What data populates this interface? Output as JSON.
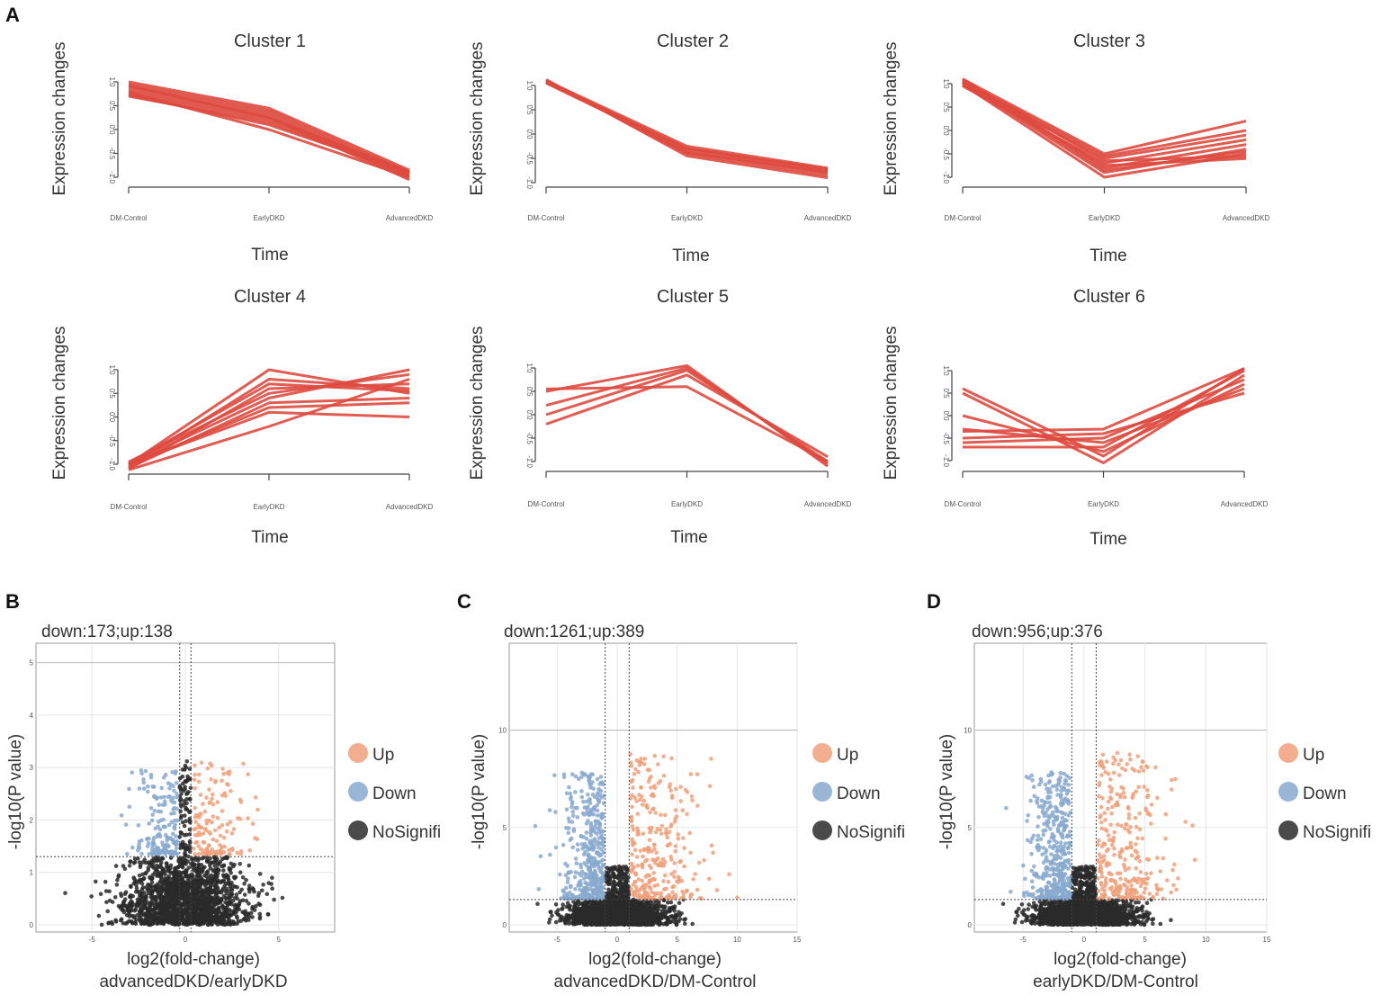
{
  "figure": {
    "panel_letters": [
      "A",
      "B",
      "C",
      "D"
    ]
  },
  "chart_data": [
    {
      "type": "line",
      "panel": "A",
      "title": "Cluster 1",
      "xlabel": "Time",
      "ylabel": "Expression changes",
      "categories": [
        "DM-Control",
        "EarlyDKD",
        "AdvancedDKD"
      ],
      "ylim": [
        -1.0,
        1.0
      ],
      "yticks": [
        -1.0,
        -0.5,
        0.0,
        0.5,
        1.0
      ],
      "series_color": "#de4a3f",
      "series": [
        [
          1.0,
          0.45,
          -0.85
        ],
        [
          0.95,
          0.4,
          -0.9
        ],
        [
          0.9,
          0.35,
          -0.95
        ],
        [
          0.85,
          0.3,
          -1.0
        ],
        [
          0.8,
          0.25,
          -1.05
        ],
        [
          0.75,
          0.2,
          -0.9
        ],
        [
          0.7,
          0.15,
          -0.95
        ],
        [
          0.78,
          0.0,
          -1.0
        ],
        [
          0.72,
          0.1,
          -0.9
        ],
        [
          0.92,
          0.25,
          -0.88
        ]
      ]
    },
    {
      "type": "line",
      "panel": "A",
      "title": "Cluster 2",
      "xlabel": "Time",
      "ylabel": "Expression changes",
      "categories": [
        "DM-Control",
        "EarlyDKD",
        "AdvancedDKD"
      ],
      "ylim": [
        -1.0,
        1.0
      ],
      "yticks": [
        -1.0,
        -0.5,
        0.0,
        0.5,
        1.0
      ],
      "series_color": "#de4a3f",
      "series": [
        [
          1.1,
          -0.25,
          -0.7
        ],
        [
          1.08,
          -0.3,
          -0.75
        ],
        [
          1.05,
          -0.35,
          -0.8
        ],
        [
          1.1,
          -0.4,
          -0.85
        ],
        [
          1.12,
          -0.45,
          -0.9
        ],
        [
          1.06,
          -0.3,
          -0.72
        ],
        [
          1.09,
          -0.38,
          -0.78
        ]
      ]
    },
    {
      "type": "line",
      "panel": "A",
      "title": "Cluster 3",
      "xlabel": "Time",
      "ylabel": "Expression changes",
      "categories": [
        "DM-Control",
        "EarlyDKD",
        "AdvancedDKD"
      ],
      "ylim": [
        -1.0,
        1.0
      ],
      "yticks": [
        -1.0,
        -0.5,
        0.0,
        0.5,
        1.0
      ],
      "series_color": "#de4a3f",
      "series": [
        [
          1.1,
          -0.5,
          0.2
        ],
        [
          1.05,
          -0.55,
          0.0
        ],
        [
          1.0,
          -0.6,
          -0.1
        ],
        [
          0.95,
          -0.7,
          -0.2
        ],
        [
          1.1,
          -0.8,
          -0.3
        ],
        [
          1.02,
          -0.9,
          -0.4
        ],
        [
          0.98,
          -1.0,
          -0.5
        ],
        [
          1.08,
          -0.65,
          -0.55
        ],
        [
          1.04,
          -0.75,
          -0.6
        ],
        [
          1.06,
          -0.85,
          -0.45
        ]
      ]
    },
    {
      "type": "line",
      "panel": "A",
      "title": "Cluster 4",
      "xlabel": "Time",
      "ylabel": "Expression changes",
      "categories": [
        "DM-Control",
        "EarlyDKD",
        "AdvancedDKD"
      ],
      "ylim": [
        -1.0,
        1.0
      ],
      "yticks": [
        -1.0,
        -0.5,
        0.0,
        0.5,
        1.0
      ],
      "series_color": "#de4a3f",
      "series": [
        [
          -1.0,
          1.0,
          0.5
        ],
        [
          -1.05,
          0.8,
          0.6
        ],
        [
          -1.1,
          0.6,
          0.7
        ],
        [
          -0.95,
          0.5,
          0.9
        ],
        [
          -1.0,
          0.4,
          1.0
        ],
        [
          -1.08,
          0.3,
          0.4
        ],
        [
          -1.02,
          0.2,
          0.3
        ],
        [
          -1.0,
          0.1,
          0.0
        ],
        [
          -1.12,
          -0.2,
          0.8
        ],
        [
          -0.98,
          0.7,
          0.55
        ]
      ]
    },
    {
      "type": "line",
      "panel": "A",
      "title": "Cluster 5",
      "xlabel": "Time",
      "ylabel": "Expression changes",
      "categories": [
        "DM-Control",
        "EarlyDKD",
        "AdvancedDKD"
      ],
      "ylim": [
        -1.0,
        1.0
      ],
      "yticks": [
        -1.0,
        -0.5,
        0.0,
        0.5,
        1.0
      ],
      "series_color": "#de4a3f",
      "series": [
        [
          0.55,
          0.6,
          -1.0
        ],
        [
          0.5,
          1.05,
          -1.1
        ],
        [
          0.2,
          1.0,
          -1.05
        ],
        [
          0.0,
          0.95,
          -1.0
        ],
        [
          -0.2,
          0.85,
          -0.9
        ]
      ]
    },
    {
      "type": "line",
      "panel": "A",
      "title": "Cluster 6",
      "xlabel": "Time",
      "ylabel": "Expression changes",
      "categories": [
        "DM-Control",
        "EarlyDKD",
        "AdvancedDKD"
      ],
      "ylim": [
        -1.0,
        1.0
      ],
      "yticks": [
        -1.0,
        -0.5,
        0.0,
        0.5,
        1.0
      ],
      "series_color": "#de4a3f",
      "series": [
        [
          0.6,
          -0.9,
          1.05
        ],
        [
          0.5,
          -1.05,
          0.9
        ],
        [
          0.0,
          -0.8,
          0.7
        ],
        [
          -0.3,
          -0.6,
          0.6
        ],
        [
          -0.5,
          -0.4,
          0.5
        ],
        [
          -0.6,
          -0.5,
          0.8
        ],
        [
          -0.7,
          -0.7,
          1.0
        ],
        [
          -0.35,
          -0.3,
          1.05
        ]
      ]
    },
    {
      "type": "scatter",
      "panel": "B",
      "annotation": "down:173;up:138",
      "xlabel": "log2(fold-change)",
      "xlabel2": "advancedDKD/earlyDKD",
      "ylabel": "-log10(P value)",
      "xlim": [
        -8,
        8
      ],
      "ylim": [
        0,
        5.2
      ],
      "xticks": [
        -5,
        0,
        5
      ],
      "yticks": [
        0,
        1,
        2,
        3,
        4,
        5
      ],
      "pthreshold": 1.3,
      "fcthreshold": 0.3,
      "hline": 5.0,
      "counts": {
        "down": 173,
        "up": 138
      },
      "legend": [
        "Up",
        "Down",
        "NoSignifi"
      ],
      "colors": {
        "up": "#f0a07a",
        "down": "#88a9cf",
        "ns": "#2a2a2a"
      }
    },
    {
      "type": "scatter",
      "panel": "C",
      "annotation": "down:1261;up:389",
      "xlabel": "log2(fold-change)",
      "xlabel2": "advancedDKD/DM-Control",
      "ylabel": "-log10(P value)",
      "xlim": [
        -9,
        15
      ],
      "ylim": [
        0,
        14
      ],
      "xticks": [
        -5,
        0,
        5,
        10,
        15
      ],
      "yticks": [
        0,
        5,
        10
      ],
      "pthreshold": 1.3,
      "fcthreshold": 1.0,
      "hline": 10,
      "counts": {
        "down": 1261,
        "up": 389
      },
      "legend": [
        "Up",
        "Down",
        "NoSignifi"
      ],
      "colors": {
        "up": "#f0a07a",
        "down": "#88a9cf",
        "ns": "#2a2a2a"
      }
    },
    {
      "type": "scatter",
      "panel": "D",
      "annotation": "down:956;up:376",
      "xlabel": "log2(fold-change)",
      "xlabel2": "earlyDKD/DM-Control",
      "ylabel": "-log10(P value)",
      "xlim": [
        -9,
        15
      ],
      "ylim": [
        0,
        14
      ],
      "xticks": [
        -5,
        0,
        5,
        10,
        15
      ],
      "yticks": [
        0,
        5,
        10
      ],
      "pthreshold": 1.3,
      "fcthreshold": 1.0,
      "hline": 10,
      "counts": {
        "down": 956,
        "up": 376
      },
      "legend": [
        "Up",
        "Down",
        "NoSignifi"
      ],
      "colors": {
        "up": "#f0a07a",
        "down": "#88a9cf",
        "ns": "#2a2a2a"
      }
    }
  ]
}
